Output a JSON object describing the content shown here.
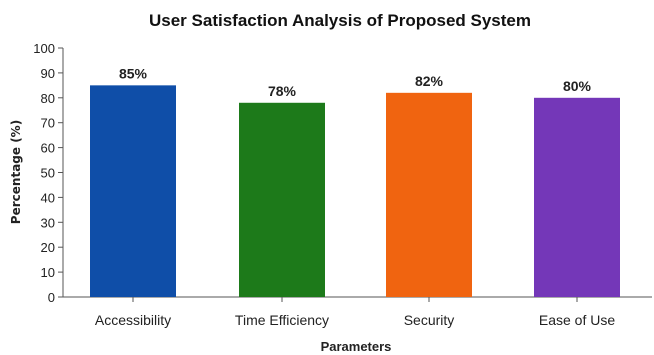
{
  "chart_data": {
    "type": "bar",
    "title": "User Satisfaction Analysis of Proposed System",
    "xlabel": "Parameters",
    "ylabel": "Percentage (%)",
    "categories": [
      "Accessibility",
      "Time Efficiency",
      "Security",
      "Ease of Use"
    ],
    "values": [
      85,
      78,
      82,
      80
    ],
    "data_labels": [
      "85%",
      "78%",
      "82%",
      "80%"
    ],
    "colors": [
      "#0f4ea8",
      "#1d7a1a",
      "#f06410",
      "#7437b8"
    ],
    "ylim": [
      0,
      100
    ],
    "yticks": [
      0,
      10,
      20,
      30,
      40,
      50,
      60,
      70,
      80,
      90,
      100
    ],
    "grid": false,
    "legend": "none"
  }
}
